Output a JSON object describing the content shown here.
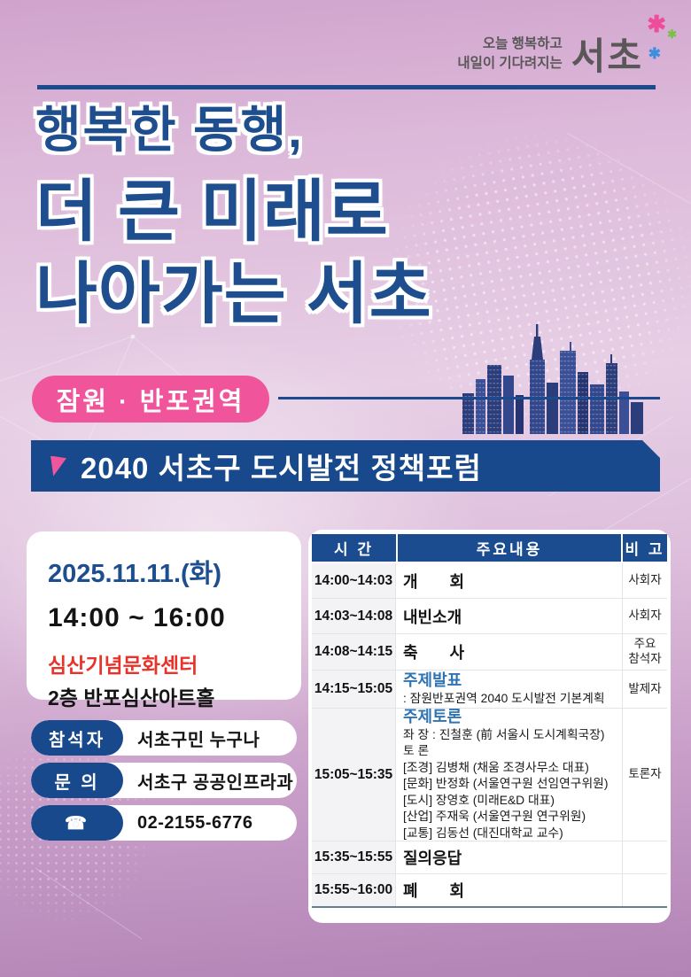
{
  "brand": {
    "slogan_line1": "오늘 행복하고",
    "slogan_line2": "내일이 기다려지는",
    "logo_text": "서초",
    "sparkle_colors": {
      "pink": "#ee4d9b",
      "green": "#7ac143",
      "blue": "#3e8ede"
    }
  },
  "title": {
    "lines": [
      "행복한 동행,",
      "더 큰 미래로",
      "나아가는 서초"
    ]
  },
  "region_badge": "잠원 · 반포권역",
  "banner": {
    "title": "2040 서초구  도시발전 정책포럼"
  },
  "event": {
    "date": "2025.11.11.(화)",
    "time": "14:00 ~ 16:00",
    "venue": "심산기념문화센터",
    "hall": "2층 반포심산아트홀"
  },
  "contacts": {
    "rows": [
      {
        "label": "참석자",
        "value": "서초구민 누구나"
      },
      {
        "label": "문 의",
        "value": "서초구 공공인프라과"
      },
      {
        "label": "☎",
        "value": "02-2155-6776"
      }
    ]
  },
  "schedule": {
    "headers": [
      "시 간",
      "주요내용",
      "비 고"
    ],
    "rows": [
      {
        "time": "14:00~14:03",
        "content": "개　　회",
        "note": "사회자"
      },
      {
        "time": "14:03~14:08",
        "content": "내빈소개",
        "note": "사회자"
      },
      {
        "time": "14:08~14:15",
        "content": "축　　사",
        "note": "주요\n참석자"
      },
      {
        "time": "14:15~15:05",
        "heading": "주제발표",
        "lines": [
          ": 잠원반포권역 2040 도시발전 기본계획"
        ],
        "note": "발제자"
      },
      {
        "time": "15:05~15:35",
        "heading": "주제토론",
        "lines": [
          "좌 장 : 진철훈 (前 서울시 도시계획국장)",
          "토 론",
          "[조경] 김병채 (채움 조경사무소 대표)",
          "[문화] 반정화 (서울연구원 선임연구위원)",
          "[도시] 장영호 (미래E&D 대표)",
          "[산업] 주재욱 (서울연구원 연구위원)",
          "[교통] 김동선 (대진대학교 교수)"
        ],
        "note": "토론자"
      },
      {
        "time": "15:35~15:55",
        "content": "질의응답",
        "note": ""
      },
      {
        "time": "15:55~16:00",
        "content": "폐　　회",
        "note": ""
      }
    ]
  },
  "colors": {
    "navy": "#17498c",
    "title_navy": "#1e4e8d",
    "pink": "#f0559c",
    "red": "#e8332a",
    "topic_blue": "#2e74b5",
    "table_bottom_line": "#647f92"
  }
}
